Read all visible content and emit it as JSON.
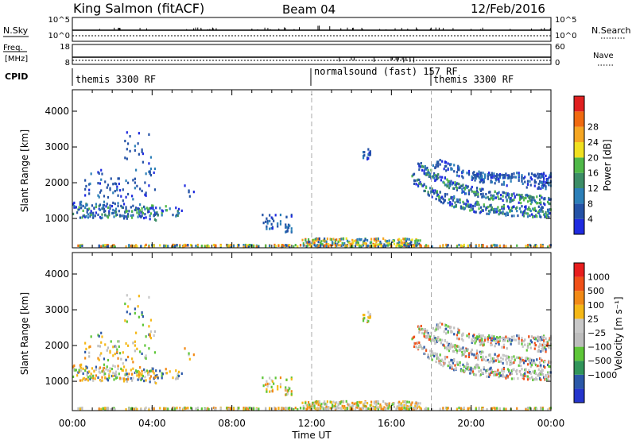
{
  "header": {
    "station": "King Salmon (fitACF)",
    "beam": "Beam 04",
    "date": "12/Feb/2016"
  },
  "top_panels": {
    "nsky_label": "N.Sky",
    "nsearch_label": "N.Search",
    "nsky_ticks": [
      "10^5",
      "10^0"
    ],
    "nsearch_ticks": [
      "10^5",
      "10^0"
    ],
    "freq_label_1": "Freq.",
    "freq_label_2": "[MHz]",
    "freq_ticks": [
      "18",
      "8"
    ],
    "nave_label": "Nave",
    "nave_ticks": [
      "60",
      "0"
    ],
    "cpid_label": "CPID",
    "cpid_segments": [
      {
        "label": "themis 3300 RF",
        "start_hour": 0
      },
      {
        "label": "normalsound (fast)  157 RF",
        "start_hour": 12
      },
      {
        "label": "themis 3300 RF",
        "start_hour": 18
      }
    ]
  },
  "colors": {
    "power": [
      "#1f2be0",
      "#2452a6",
      "#2c7fb8",
      "#3c8d66",
      "#4fb848",
      "#f0e020",
      "#f5a623",
      "#f06a10",
      "#e02020"
    ],
    "velocity": [
      "#e81e1e",
      "#f05018",
      "#f28a16",
      "#f5b817",
      "#c8c8c8",
      "#bdbdbd",
      "#5ec638",
      "#31955a",
      "#2b58a8",
      "#2535cc"
    ]
  },
  "chart_data": [
    {
      "type": "heatmap",
      "name": "power",
      "xlabel": "",
      "ylabel": "Slant Range [km]",
      "xlim": [
        0,
        24
      ],
      "ylim": [
        180,
        4600
      ],
      "yticks": [
        "1000",
        "2000",
        "3000",
        "4000"
      ],
      "colorbar_label": "Power [dB]",
      "colorbar_ticks": [
        "4",
        "8",
        "12",
        "16",
        "20",
        "24",
        "28"
      ],
      "grid": true
    },
    {
      "type": "heatmap",
      "name": "velocity",
      "xlabel": "Time UT",
      "ylabel": "Slant Range [km]",
      "xlim": [
        0,
        24
      ],
      "ylim": [
        180,
        4600
      ],
      "yticks": [
        "1000",
        "2000",
        "3000",
        "4000"
      ],
      "xticks": [
        "00:00",
        "04:00",
        "08:00",
        "12:00",
        "16:00",
        "20:00",
        "00:00"
      ],
      "colorbar_label": "Velocity [m s⁻¹]",
      "colorbar_ticks": [
        "1000",
        "500",
        "100",
        "25",
        "−25",
        "−100",
        "−500",
        "−1000"
      ],
      "grid": true
    }
  ]
}
